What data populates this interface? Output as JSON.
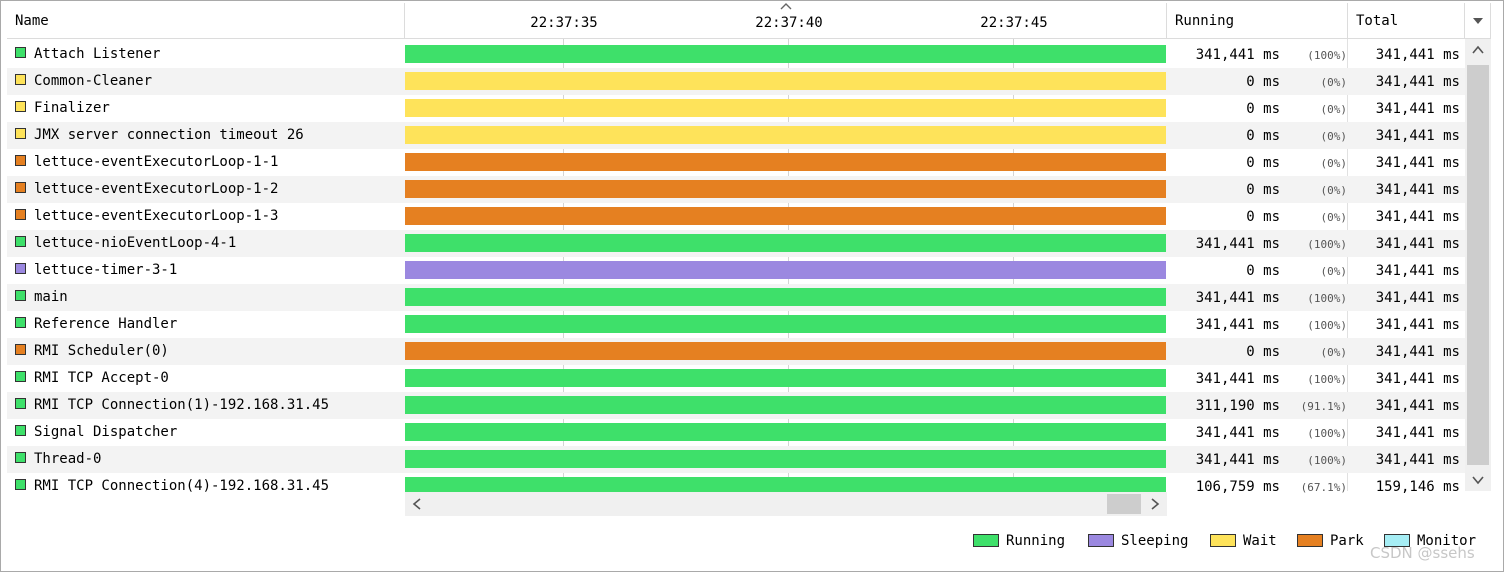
{
  "columns": {
    "name": "Name",
    "running": "Running",
    "total": "Total"
  },
  "timeline": {
    "ticks": [
      "22:37:35",
      "22:37:40",
      "22:37:45"
    ]
  },
  "threads": [
    {
      "name": "Attach Listener",
      "state": "running",
      "running": "341,441 ms",
      "pct": "(100%)",
      "total": "341,441 ms"
    },
    {
      "name": "Common-Cleaner",
      "state": "wait",
      "running": "0 ms",
      "pct": "(0%)",
      "total": "341,441 ms"
    },
    {
      "name": "Finalizer",
      "state": "wait",
      "running": "0 ms",
      "pct": "(0%)",
      "total": "341,441 ms"
    },
    {
      "name": "JMX server connection timeout 26",
      "state": "wait",
      "running": "0 ms",
      "pct": "(0%)",
      "total": "341,441 ms"
    },
    {
      "name": "lettuce-eventExecutorLoop-1-1",
      "state": "park",
      "running": "0 ms",
      "pct": "(0%)",
      "total": "341,441 ms"
    },
    {
      "name": "lettuce-eventExecutorLoop-1-2",
      "state": "park",
      "running": "0 ms",
      "pct": "(0%)",
      "total": "341,441 ms"
    },
    {
      "name": "lettuce-eventExecutorLoop-1-3",
      "state": "park",
      "running": "0 ms",
      "pct": "(0%)",
      "total": "341,441 ms"
    },
    {
      "name": "lettuce-nioEventLoop-4-1",
      "state": "running",
      "running": "341,441 ms",
      "pct": "(100%)",
      "total": "341,441 ms"
    },
    {
      "name": "lettuce-timer-3-1",
      "state": "sleeping",
      "running": "0 ms",
      "pct": "(0%)",
      "total": "341,441 ms"
    },
    {
      "name": "main",
      "state": "running",
      "running": "341,441 ms",
      "pct": "(100%)",
      "total": "341,441 ms"
    },
    {
      "name": "Reference Handler",
      "state": "running",
      "running": "341,441 ms",
      "pct": "(100%)",
      "total": "341,441 ms"
    },
    {
      "name": "RMI Scheduler(0)",
      "state": "park",
      "running": "0 ms",
      "pct": "(0%)",
      "total": "341,441 ms"
    },
    {
      "name": "RMI TCP Accept-0",
      "state": "running",
      "running": "341,441 ms",
      "pct": "(100%)",
      "total": "341,441 ms"
    },
    {
      "name": "RMI TCP Connection(1)-192.168.31.45",
      "state": "running",
      "running": "311,190 ms",
      "pct": "(91.1%)",
      "total": "341,441 ms"
    },
    {
      "name": "Signal Dispatcher",
      "state": "running",
      "running": "341,441 ms",
      "pct": "(100%)",
      "total": "341,441 ms"
    },
    {
      "name": "Thread-0",
      "state": "running",
      "running": "341,441 ms",
      "pct": "(100%)",
      "total": "341,441 ms"
    },
    {
      "name": "RMI TCP Connection(4)-192.168.31.45",
      "state": "running",
      "running": "106,759 ms",
      "pct": "(67.1%)",
      "total": "159,146 ms"
    }
  ],
  "colors": {
    "running": "#3ee06a",
    "sleeping": "#9b88e0",
    "wait": "#fee35a",
    "park": "#e58021",
    "monitor": "#a6eef5"
  },
  "legend": [
    {
      "key": "running",
      "label": "Running"
    },
    {
      "key": "sleeping",
      "label": "Sleeping"
    },
    {
      "key": "wait",
      "label": "Wait"
    },
    {
      "key": "park",
      "label": "Park"
    },
    {
      "key": "monitor",
      "label": "Monitor"
    }
  ],
  "watermark": "CSDN @ssehs"
}
